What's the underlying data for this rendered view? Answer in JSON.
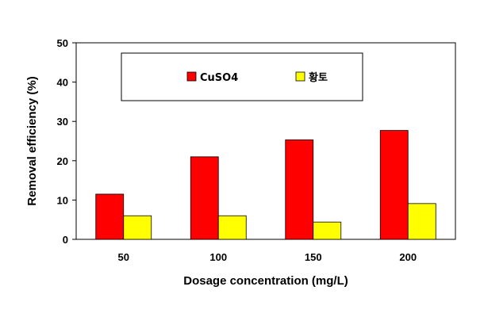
{
  "chart_data": {
    "type": "bar",
    "categories": [
      "50",
      "100",
      "150",
      "200"
    ],
    "series": [
      {
        "name": "CuSO4",
        "values": [
          11.5,
          21.0,
          25.3,
          27.7
        ],
        "color": "#ff0000"
      },
      {
        "name": "황토",
        "values": [
          6.0,
          6.0,
          4.4,
          9.1
        ],
        "color": "#ffff00"
      }
    ],
    "xlabel": "Dosage concentration (mg/L)",
    "ylabel": "Removal efficiency (%)",
    "ylim": [
      0,
      50
    ],
    "yticks": [
      "0",
      "10",
      "20",
      "30",
      "40",
      "50"
    ],
    "grid": false,
    "legend": "top"
  }
}
